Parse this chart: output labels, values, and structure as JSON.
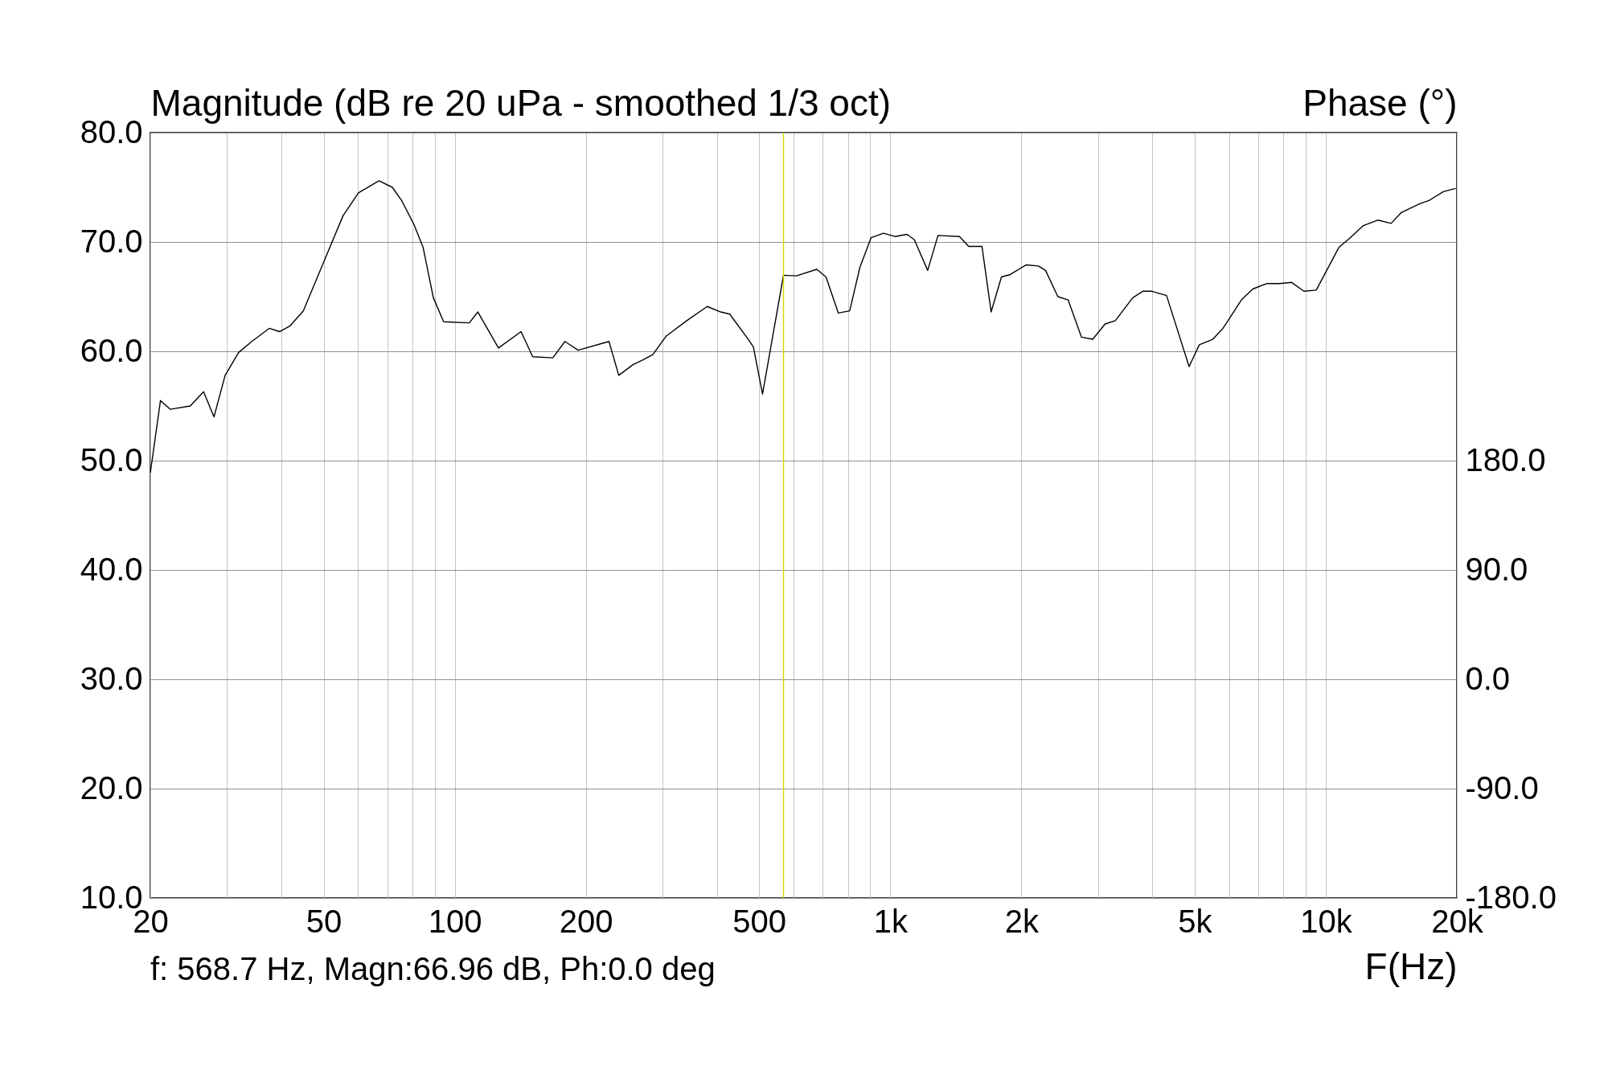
{
  "chart_data": {
    "type": "line",
    "ylabel": "Magnitude (dB re 20 uPa - smoothed 1/3 oct)",
    "y2label": "Phase (°)",
    "xlabel": "F(Hz)",
    "log": "x",
    "grid": true,
    "xlim": [
      20,
      20000
    ],
    "xticks": [
      20,
      {
        "value": 30,
        "label": null
      },
      {
        "value": 40,
        "label": null
      },
      50,
      {
        "value": 60,
        "label": null
      },
      {
        "value": 70,
        "label": null
      },
      {
        "value": 80,
        "label": null
      },
      {
        "value": 90,
        "label": null
      },
      100,
      200,
      {
        "value": 300,
        "label": null
      },
      {
        "value": 400,
        "label": null
      },
      500,
      {
        "value": 600,
        "label": null
      },
      {
        "value": 700,
        "label": null
      },
      {
        "value": 800,
        "label": null
      },
      {
        "value": 900,
        "label": null
      },
      {
        "value": 1000,
        "label": "1k"
      },
      {
        "value": 2000,
        "label": "2k"
      },
      {
        "value": 3000,
        "label": null
      },
      {
        "value": 4000,
        "label": null
      },
      {
        "value": 5000,
        "label": "5k"
      },
      {
        "value": 6000,
        "label": null
      },
      {
        "value": 7000,
        "label": null
      },
      {
        "value": 8000,
        "label": null
      },
      {
        "value": 9000,
        "label": null
      },
      {
        "value": 10000,
        "label": "10k"
      },
      {
        "value": 20000,
        "label": "20k"
      }
    ],
    "ylim": [
      10,
      80
    ],
    "yticks": [
      {
        "value": 10,
        "label": "10.0"
      },
      {
        "value": 20,
        "label": "20.0"
      },
      {
        "value": 30,
        "label": "30.0"
      },
      {
        "value": 40,
        "label": "40.0"
      },
      {
        "value": 50,
        "label": "50.0"
      },
      {
        "value": 60,
        "label": "60.0"
      },
      {
        "value": 70,
        "label": "70.0"
      },
      {
        "value": 80,
        "label": "80.0"
      }
    ],
    "y2lim": [
      -180,
      450
    ],
    "y2ticks": [
      {
        "value": -180,
        "label": "-180.0"
      },
      {
        "value": -90,
        "label": "-90.0"
      },
      {
        "value": 0,
        "label": "0.0"
      },
      {
        "value": 90,
        "label": "90.0"
      },
      {
        "value": 180,
        "label": "180.0"
      }
    ],
    "ref_lines": [
      {
        "axis": "x",
        "value": 568.7,
        "color": "#d8d800"
      }
    ],
    "annotations": [
      "f:  568.7 Hz, Magn:66.96 dB, Ph:0.0 deg"
    ],
    "series": [
      {
        "color": "#000000",
        "x": [
          20,
          21.1,
          22.2,
          24.7,
          26.5,
          28,
          29.7,
          31.9,
          34.2,
          37.5,
          39.6,
          41.8,
          44.9,
          49.7,
          55.4,
          60.1,
          67,
          71.9,
          75.5,
          80.6,
          84.6,
          89.3,
          94.3,
          108,
          113,
          126,
          142,
          151,
          168,
          179,
          192,
          226,
          238,
          257,
          270,
          285,
          306,
          341,
          380,
          408,
          428,
          472,
          485,
          509,
          568.7,
          609,
          678,
          712,
          760,
          807,
          852,
          904,
          965,
          1025,
          1093,
          1136,
          1219,
          1287,
          1442,
          1514,
          1624,
          1705,
          1800,
          1880,
          2050,
          2188,
          2273,
          2426,
          2561,
          2748,
          2917,
          3114,
          3287,
          3605,
          3806,
          3975,
          4310,
          4855,
          5125,
          5501,
          5808,
          6403,
          6797,
          7333,
          7825,
          8350,
          8911,
          9510,
          10716,
          11312,
          11750,
          12204,
          13164,
          14130,
          14918,
          16443,
          17266,
          18626,
          19881
        ],
        "values": [
          48.9,
          55.5,
          54.7,
          55.0,
          56.3,
          54.0,
          57.8,
          59.9,
          60.9,
          62.1,
          61.8,
          62.3,
          63.7,
          67.9,
          72.4,
          74.5,
          75.6,
          75.0,
          73.8,
          71.6,
          69.5,
          64.9,
          62.7,
          62.6,
          63.6,
          60.3,
          61.8,
          59.5,
          59.4,
          60.9,
          60.1,
          60.9,
          57.8,
          58.8,
          59.2,
          59.7,
          61.4,
          62.8,
          64.1,
          63.6,
          63.4,
          61.1,
          60.4,
          56.1,
          66.96,
          66.9,
          67.5,
          66.8,
          63.5,
          63.7,
          67.7,
          70.4,
          70.8,
          70.5,
          70.7,
          70.2,
          67.4,
          70.6,
          70.5,
          69.6,
          69.6,
          63.6,
          66.8,
          67.0,
          67.9,
          67.8,
          67.4,
          65.0,
          64.7,
          61.3,
          61.1,
          62.5,
          62.8,
          64.9,
          65.5,
          65.5,
          65.1,
          58.6,
          60.6,
          61.1,
          62.1,
          64.7,
          65.7,
          66.2,
          66.2,
          66.3,
          65.5,
          65.6,
          69.5,
          70.3,
          70.9,
          71.5,
          72.0,
          71.7,
          72.7,
          73.5,
          73.8,
          74.6,
          74.9
        ]
      }
    ]
  }
}
